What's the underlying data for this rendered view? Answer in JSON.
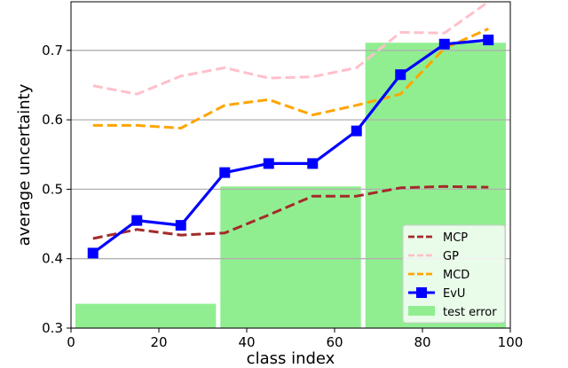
{
  "chart_data": {
    "type": "line",
    "title": "",
    "xlabel": "class index",
    "ylabel": "average uncertainty",
    "xlim": [
      0,
      100
    ],
    "ylim": [
      0.3,
      0.77
    ],
    "x_ticks": [
      0,
      20,
      40,
      60,
      80,
      100
    ],
    "y_ticks": [
      0.3,
      0.4,
      0.5,
      0.6,
      0.7
    ],
    "grid": "horizontal",
    "legend_position": "lower-right",
    "x": [
      5,
      15,
      25,
      35,
      45,
      55,
      65,
      75,
      85,
      95
    ],
    "series": [
      {
        "name": "MCP",
        "color": "#a52a2a",
        "style": "dashed",
        "values": [
          0.429,
          0.442,
          0.434,
          0.437,
          0.463,
          0.49,
          0.49,
          0.502,
          0.504,
          0.503
        ]
      },
      {
        "name": "GP",
        "color": "#ffc0cb",
        "style": "dashed",
        "values": [
          0.649,
          0.637,
          0.663,
          0.675,
          0.66,
          0.662,
          0.675,
          0.726,
          0.725,
          0.77
        ]
      },
      {
        "name": "MCD",
        "color": "#ffa500",
        "style": "dashed",
        "values": [
          0.592,
          0.592,
          0.588,
          0.621,
          0.629,
          0.607,
          0.621,
          0.637,
          0.703,
          0.731
        ]
      },
      {
        "name": "EvU",
        "color": "#0000ff",
        "style": "solid",
        "marker": "square",
        "values": [
          0.408,
          0.455,
          0.448,
          0.524,
          0.537,
          0.537,
          0.584,
          0.665,
          0.709,
          0.715
        ]
      }
    ],
    "bars": {
      "name": "test error",
      "color": "#90ee90",
      "items": [
        {
          "x0": 1,
          "x1": 33,
          "value": 0.335
        },
        {
          "x0": 34,
          "x1": 66,
          "value": 0.504
        },
        {
          "x0": 67,
          "x1": 99,
          "value": 0.711
        }
      ]
    }
  }
}
